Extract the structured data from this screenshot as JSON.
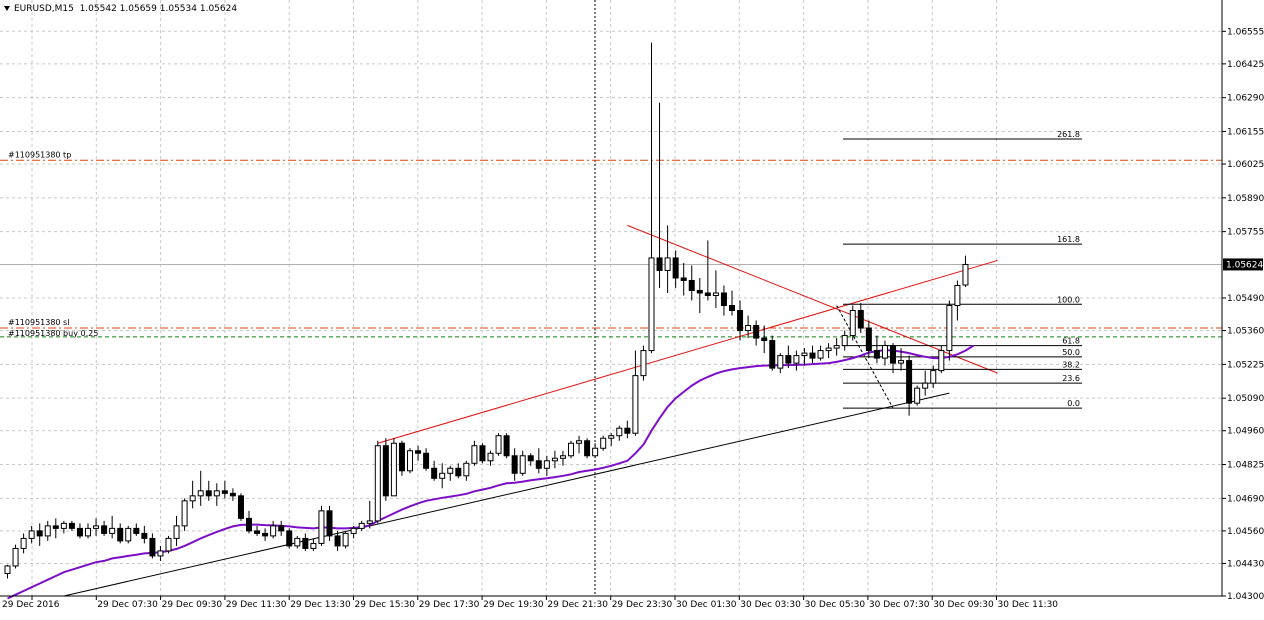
{
  "header": {
    "symbol_label": "EURUSD,M15",
    "open": "1.05542",
    "high": "1.05659",
    "low": "1.05534",
    "close": "1.05624"
  },
  "colors": {
    "background": "#ffffff",
    "grid": "#c8c8c8",
    "candle": "#000000",
    "moving_average": "#7d0ec8",
    "trendline_red": "#e01010",
    "tp_line": "#d04a10",
    "sl_line": "#d04a10",
    "buy_line": "#108010"
  },
  "icons": {
    "menu": "triangle-down-icon"
  },
  "chart_data": {
    "type": "candlestick",
    "symbol": "EURUSD",
    "timeframe": "M15",
    "ylim": [
      1.043,
      1.0668
    ],
    "grid": true,
    "x_tick_labels": [
      "29 Dec 2016",
      "29 Dec 07:30",
      "29 Dec 09:30",
      "29 Dec 11:30",
      "29 Dec 13:30",
      "29 Dec 15:30",
      "29 Dec 17:30",
      "29 Dec 19:30",
      "29 Dec 21:30",
      "29 Dec 23:30",
      "30 Dec 01:30",
      "30 Dec 03:30",
      "30 Dec 05:30",
      "30 Dec 07:30",
      "30 Dec 09:30",
      "30 Dec 11:30"
    ],
    "y_tick_labels": [
      "1.06555",
      "1.06425",
      "1.06290",
      "1.06155",
      "1.06025",
      "1.05890",
      "1.05755",
      "1.05490",
      "1.05360",
      "1.05225",
      "1.05090",
      "1.04960",
      "1.04825",
      "1.04690",
      "1.04560",
      "1.04430",
      "1.04300"
    ],
    "current_price_label": "1.05624",
    "current_price": 1.05624,
    "order_lines": [
      {
        "label": "#110951380 tp",
        "price": 1.0604,
        "style": "dash-dot"
      },
      {
        "label": "#110951380 sl",
        "price": 1.0537,
        "style": "dash-dot"
      },
      {
        "label": "#110951380 buy 0.25",
        "price": 1.05335,
        "style": "dash"
      }
    ],
    "fibonacci": {
      "levels": [
        "261.8",
        "161.8",
        "100.0",
        "61.8",
        "50.0",
        "38.2",
        "23.6",
        "0.0"
      ],
      "prices": [
        1.06125,
        1.05705,
        1.05465,
        1.053,
        1.05255,
        1.05205,
        1.0515,
        1.0505
      ]
    },
    "candles": [
      [
        1.0439,
        1.04425,
        1.0437,
        1.0442
      ],
      [
        1.0442,
        1.04505,
        1.0441,
        1.0449
      ],
      [
        1.0449,
        1.0455,
        1.0447,
        1.0453
      ],
      [
        1.0453,
        1.0458,
        1.0451,
        1.0456
      ],
      [
        1.0456,
        1.0459,
        1.045,
        1.0454
      ],
      [
        1.0454,
        1.046,
        1.0452,
        1.0458
      ],
      [
        1.0458,
        1.0461,
        1.0453,
        1.0457
      ],
      [
        1.0457,
        1.046,
        1.0455,
        1.0459
      ],
      [
        1.0459,
        1.046,
        1.0456,
        1.0457
      ],
      [
        1.0457,
        1.0459,
        1.0453,
        1.0454
      ],
      [
        1.0454,
        1.0459,
        1.0453,
        1.0457
      ],
      [
        1.0457,
        1.0461,
        1.0454,
        1.0458
      ],
      [
        1.0458,
        1.046,
        1.0454,
        1.0455
      ],
      [
        1.0455,
        1.0462,
        1.0453,
        1.0457
      ],
      [
        1.0457,
        1.0459,
        1.0451,
        1.0452
      ],
      [
        1.0452,
        1.0458,
        1.0451,
        1.0457
      ],
      [
        1.0457,
        1.0459,
        1.0454,
        1.0455
      ],
      [
        1.0455,
        1.0458,
        1.0451,
        1.0453
      ],
      [
        1.0453,
        1.0455,
        1.0445,
        1.0446
      ],
      [
        1.0446,
        1.045,
        1.0444,
        1.0448
      ],
      [
        1.0448,
        1.0454,
        1.0447,
        1.0453
      ],
      [
        1.0453,
        1.0462,
        1.045,
        1.0458
      ],
      [
        1.0458,
        1.0469,
        1.0456,
        1.0468
      ],
      [
        1.0468,
        1.0476,
        1.0465,
        1.047
      ],
      [
        1.047,
        1.048,
        1.0466,
        1.0472
      ],
      [
        1.0472,
        1.0476,
        1.0468,
        1.047
      ],
      [
        1.047,
        1.0475,
        1.0466,
        1.0472
      ],
      [
        1.0472,
        1.0476,
        1.0469,
        1.0471
      ],
      [
        1.0471,
        1.0473,
        1.0468,
        1.047
      ],
      [
        1.047,
        1.0471,
        1.046,
        1.0461
      ],
      [
        1.0461,
        1.0464,
        1.0455,
        1.0456
      ],
      [
        1.0456,
        1.0458,
        1.0454,
        1.0455
      ],
      [
        1.0455,
        1.0457,
        1.0452,
        1.0454
      ],
      [
        1.0454,
        1.046,
        1.0453,
        1.0458
      ],
      [
        1.0458,
        1.046,
        1.0454,
        1.0456
      ],
      [
        1.0456,
        1.0457,
        1.0449,
        1.045
      ],
      [
        1.045,
        1.0454,
        1.0449,
        1.0453
      ],
      [
        1.0453,
        1.0455,
        1.0448,
        1.0449
      ],
      [
        1.0449,
        1.0453,
        1.0448,
        1.0451
      ],
      [
        1.0451,
        1.0466,
        1.045,
        1.0464
      ],
      [
        1.0464,
        1.0466,
        1.0452,
        1.0454
      ],
      [
        1.0454,
        1.0456,
        1.0448,
        1.045
      ],
      [
        1.045,
        1.0456,
        1.0449,
        1.0455
      ],
      [
        1.0455,
        1.0458,
        1.0453,
        1.0457
      ],
      [
        1.0457,
        1.046,
        1.0456,
        1.0459
      ],
      [
        1.0459,
        1.0468,
        1.0457,
        1.046
      ],
      [
        1.046,
        1.0492,
        1.0459,
        1.049
      ],
      [
        1.049,
        1.0493,
        1.0468,
        1.047
      ],
      [
        1.047,
        1.0493,
        1.047,
        1.0491
      ],
      [
        1.0491,
        1.0492,
        1.0478,
        1.048
      ],
      [
        1.048,
        1.0489,
        1.0479,
        1.0488
      ],
      [
        1.0488,
        1.049,
        1.0484,
        1.0487
      ],
      [
        1.0487,
        1.0489,
        1.048,
        1.0481
      ],
      [
        1.0481,
        1.0484,
        1.0476,
        1.0477
      ],
      [
        1.0477,
        1.0483,
        1.0473,
        1.0479
      ],
      [
        1.0479,
        1.0482,
        1.0476,
        1.0481
      ],
      [
        1.0481,
        1.0483,
        1.0477,
        1.0478
      ],
      [
        1.0478,
        1.0484,
        1.0476,
        1.0483
      ],
      [
        1.0483,
        1.0492,
        1.0482,
        1.049
      ],
      [
        1.049,
        1.0491,
        1.0483,
        1.0484
      ],
      [
        1.0484,
        1.0488,
        1.0482,
        1.0487
      ],
      [
        1.0487,
        1.0495,
        1.0486,
        1.0494
      ],
      [
        1.0494,
        1.0495,
        1.0485,
        1.0486
      ],
      [
        1.0486,
        1.0489,
        1.0476,
        1.0479
      ],
      [
        1.0479,
        1.0488,
        1.0478,
        1.0486
      ],
      [
        1.0486,
        1.0487,
        1.0482,
        1.0484
      ],
      [
        1.0484,
        1.0489,
        1.0479,
        1.0481
      ],
      [
        1.0481,
        1.0486,
        1.0478,
        1.0484
      ],
      [
        1.0484,
        1.0488,
        1.0481,
        1.0485
      ],
      [
        1.0485,
        1.0488,
        1.0482,
        1.0486
      ],
      [
        1.0486,
        1.0492,
        1.0485,
        1.0491
      ],
      [
        1.0491,
        1.0494,
        1.0487,
        1.0492
      ],
      [
        1.0492,
        1.0493,
        1.0485,
        1.0486
      ],
      [
        1.0486,
        1.0491,
        1.0485,
        1.0489
      ],
      [
        1.0489,
        1.0494,
        1.0488,
        1.0493
      ],
      [
        1.0493,
        1.0495,
        1.049,
        1.0494
      ],
      [
        1.0494,
        1.0498,
        1.0492,
        1.0497
      ],
      [
        1.0497,
        1.05,
        1.0493,
        1.0495
      ],
      [
        1.0495,
        1.0528,
        1.0494,
        1.0518
      ],
      [
        1.0518,
        1.053,
        1.0516,
        1.0528
      ],
      [
        1.0528,
        1.0651,
        1.0527,
        1.0565
      ],
      [
        1.0565,
        1.0627,
        1.0553,
        1.056
      ],
      [
        1.056,
        1.0578,
        1.0551,
        1.0565
      ],
      [
        1.0565,
        1.0568,
        1.0553,
        1.0557
      ],
      [
        1.0557,
        1.0563,
        1.055,
        1.0556
      ],
      [
        1.0556,
        1.0562,
        1.0548,
        1.0552
      ],
      [
        1.0552,
        1.0557,
        1.0543,
        1.0551
      ],
      [
        1.0551,
        1.0572,
        1.0548,
        1.055
      ],
      [
        1.055,
        1.056,
        1.0545,
        1.0551
      ],
      [
        1.0551,
        1.0554,
        1.0542,
        1.0546
      ],
      [
        1.0546,
        1.0552,
        1.0542,
        1.0544
      ],
      [
        1.0544,
        1.0548,
        1.0532,
        1.0536
      ],
      [
        1.0536,
        1.0542,
        1.0533,
        1.0538
      ],
      [
        1.0538,
        1.054,
        1.053,
        1.0533
      ],
      [
        1.0533,
        1.0538,
        1.0527,
        1.0532
      ],
      [
        1.0532,
        1.0534,
        1.052,
        1.0521
      ],
      [
        1.0521,
        1.0527,
        1.0519,
        1.0526
      ],
      [
        1.0526,
        1.053,
        1.0521,
        1.0523
      ],
      [
        1.0523,
        1.0528,
        1.052,
        1.0526
      ],
      [
        1.0526,
        1.0529,
        1.0522,
        1.0527
      ],
      [
        1.0527,
        1.053,
        1.0523,
        1.0525
      ],
      [
        1.0525,
        1.053,
        1.0524,
        1.0528
      ],
      [
        1.0528,
        1.0531,
        1.0525,
        1.0529
      ],
      [
        1.0529,
        1.0533,
        1.0526,
        1.053
      ],
      [
        1.053,
        1.0536,
        1.0528,
        1.0534
      ],
      [
        1.0534,
        1.0546,
        1.0532,
        1.0544
      ],
      [
        1.0544,
        1.0547,
        1.0535,
        1.0537
      ],
      [
        1.0537,
        1.054,
        1.0525,
        1.0528
      ],
      [
        1.0528,
        1.0534,
        1.0523,
        1.0525
      ],
      [
        1.0525,
        1.0532,
        1.0522,
        1.053
      ],
      [
        1.053,
        1.0531,
        1.0519,
        1.0523
      ],
      [
        1.0523,
        1.0529,
        1.052,
        1.0524
      ],
      [
        1.0524,
        1.0526,
        1.0502,
        1.0507
      ],
      [
        1.0507,
        1.0514,
        1.0506,
        1.0513
      ],
      [
        1.0513,
        1.052,
        1.051,
        1.0515
      ],
      [
        1.0515,
        1.0522,
        1.0513,
        1.052
      ],
      [
        1.052,
        1.053,
        1.0519,
        1.0528
      ],
      [
        1.0528,
        1.0548,
        1.0524,
        1.0546
      ],
      [
        1.0546,
        1.0556,
        1.054,
        1.0554
      ],
      [
        1.05542,
        1.05659,
        1.05534,
        1.05624
      ]
    ],
    "moving_average": [
      1.0429,
      1.04305,
      1.0432,
      1.04335,
      1.0435,
      1.04365,
      1.0438,
      1.04395,
      1.04405,
      1.04415,
      1.04425,
      1.04435,
      1.0444,
      1.0445,
      1.04455,
      1.0446,
      1.04465,
      1.0447,
      1.04472,
      1.04475,
      1.0448,
      1.04488,
      1.045,
      1.04515,
      1.0453,
      1.04543,
      1.04556,
      1.04568,
      1.04578,
      1.04584,
      1.04585,
      1.04585,
      1.04583,
      1.04582,
      1.0458,
      1.04578,
      1.04574,
      1.04572,
      1.0457,
      1.04574,
      1.04573,
      1.0457,
      1.0457,
      1.04572,
      1.04575,
      1.04582,
      1.046,
      1.04615,
      1.0463,
      1.04645,
      1.04658,
      1.0467,
      1.0468,
      1.04686,
      1.04692,
      1.04697,
      1.04702,
      1.04708,
      1.04718,
      1.04725,
      1.04732,
      1.04742,
      1.0475,
      1.04752,
      1.04757,
      1.04762,
      1.04766,
      1.0477,
      1.04775,
      1.0478,
      1.04786,
      1.04795,
      1.048,
      1.04805,
      1.04812,
      1.0482,
      1.0483,
      1.0484,
      1.0487,
      1.04905,
      1.0496,
      1.0501,
      1.05055,
      1.0509,
      1.05115,
      1.0514,
      1.0516,
      1.05175,
      1.05188,
      1.05198,
      1.05205,
      1.0521,
      1.05214,
      1.05218,
      1.0522,
      1.05221,
      1.05222,
      1.05222,
      1.05223,
      1.05224,
      1.05226,
      1.05228,
      1.0523,
      1.05235,
      1.05242,
      1.0525,
      1.0526,
      1.05272,
      1.05278,
      1.05282,
      1.0528,
      1.05276,
      1.0527,
      1.05262,
      1.05255,
      1.0525,
      1.0525,
      1.05255,
      1.05265,
      1.0528,
      1.053
    ],
    "trendlines": [
      {
        "color": "red",
        "from": [
          46,
          1.0491
        ],
        "to": [
          123,
          1.0564
        ]
      },
      {
        "color": "red",
        "from": [
          77,
          1.0578
        ],
        "to": [
          123,
          1.0519
        ]
      },
      {
        "color": "black",
        "from": [
          7,
          1.043
        ],
        "to": [
          117,
          1.0511
        ]
      }
    ],
    "fibo_swing": {
      "from": [
        103,
        1.0546
      ],
      "to": [
        110,
        1.0505
      ]
    }
  }
}
